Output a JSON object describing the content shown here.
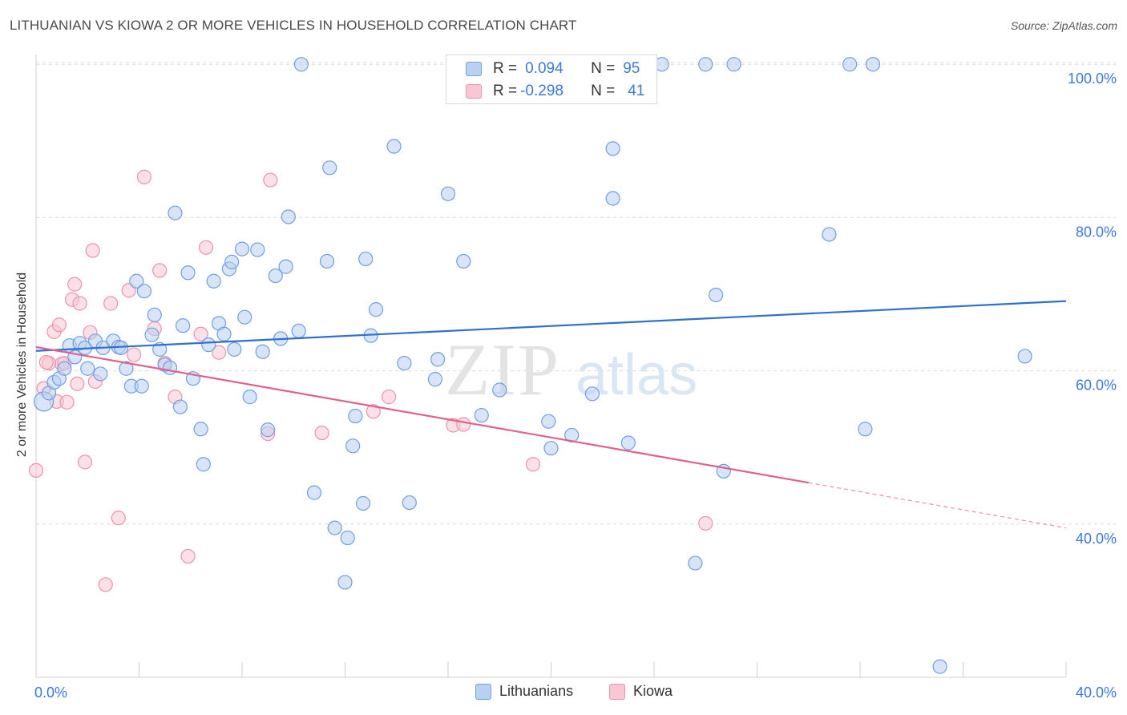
{
  "title": "LITHUANIAN VS KIOWA 2 OR MORE VEHICLES IN HOUSEHOLD CORRELATION CHART",
  "source": "Source: ZipAtlas.com",
  "watermark": {
    "zip": "ZIP",
    "atlas": "atlas"
  },
  "legend": {
    "rows": [
      {
        "r_label": "R =",
        "r_value": "0.094",
        "n_label": "N =",
        "n_value": "95"
      },
      {
        "r_label": "R =",
        "r_value": "-0.298",
        "n_label": "N =",
        "n_value": "41"
      }
    ]
  },
  "bottom_legend": {
    "lithuanians": "Lithuanians",
    "kiowa": "Kiowa"
  },
  "colors": {
    "blue_fill": "#b8d0f2",
    "blue_stroke": "#6f9fe0",
    "blue_line": "#2f6fcf",
    "pink_fill": "#f8c6d4",
    "pink_stroke": "#ee92ad",
    "pink_line": "#e0608e",
    "tick_label": "#3b78d8",
    "grid": "#dcdcdc"
  },
  "chart_data": {
    "type": "scatter",
    "title": "LITHUANIAN VS KIOWA 2 OR MORE VEHICLES IN HOUSEHOLD CORRELATION CHART",
    "xlabel": "",
    "ylabel": "2 or more Vehicles in Household",
    "xlim": [
      0,
      40
    ],
    "ylim": [
      20,
      104
    ],
    "x_tick_labels": [
      "0.0%",
      "40.0%"
    ],
    "y_ticks": [
      40,
      60,
      80,
      100
    ],
    "y_tick_labels": [
      "40.0%",
      "60.0%",
      "80.0%",
      "100.0%"
    ],
    "grid": true,
    "legend_position": "top-center",
    "series": [
      {
        "name": "Lithuanians",
        "color": "#b8d0f2",
        "trend": {
          "x": [
            0,
            40
          ],
          "y": [
            62.6,
            69.1
          ]
        },
        "points": [
          [
            0.3,
            56.0
          ],
          [
            0.5,
            57.1
          ],
          [
            0.7,
            58.5
          ],
          [
            0.9,
            59.0
          ],
          [
            1.1,
            60.3
          ],
          [
            1.3,
            63.3
          ],
          [
            1.5,
            61.8
          ],
          [
            1.7,
            63.6
          ],
          [
            1.9,
            63.0
          ],
          [
            2.0,
            60.3
          ],
          [
            2.3,
            63.9
          ],
          [
            2.5,
            59.6
          ],
          [
            2.6,
            63.0
          ],
          [
            3.0,
            63.9
          ],
          [
            3.2,
            63.1
          ],
          [
            3.3,
            63.0
          ],
          [
            3.5,
            60.3
          ],
          [
            3.7,
            58.0
          ],
          [
            3.9,
            71.7
          ],
          [
            4.1,
            58.0
          ],
          [
            4.2,
            70.4
          ],
          [
            4.5,
            64.7
          ],
          [
            4.6,
            67.3
          ],
          [
            4.8,
            62.8
          ],
          [
            5.0,
            60.8
          ],
          [
            5.2,
            60.4
          ],
          [
            5.4,
            80.6
          ],
          [
            5.6,
            55.3
          ],
          [
            5.7,
            65.9
          ],
          [
            5.9,
            72.8
          ],
          [
            6.1,
            59.0
          ],
          [
            6.4,
            52.4
          ],
          [
            6.5,
            47.8
          ],
          [
            6.7,
            63.4
          ],
          [
            6.9,
            71.7
          ],
          [
            7.1,
            66.2
          ],
          [
            7.3,
            64.8
          ],
          [
            7.5,
            73.3
          ],
          [
            7.7,
            62.8
          ],
          [
            8.0,
            75.9
          ],
          [
            8.1,
            67.0
          ],
          [
            8.3,
            56.6
          ],
          [
            8.6,
            75.8
          ],
          [
            8.8,
            62.5
          ],
          [
            9.0,
            52.3
          ],
          [
            9.3,
            72.4
          ],
          [
            9.5,
            64.2
          ],
          [
            9.7,
            73.6
          ],
          [
            9.8,
            80.1
          ],
          [
            10.2,
            65.2
          ],
          [
            10.3,
            100.0
          ],
          [
            10.8,
            44.1
          ],
          [
            11.3,
            74.3
          ],
          [
            11.4,
            86.5
          ],
          [
            11.6,
            39.5
          ],
          [
            12.0,
            32.4
          ],
          [
            12.1,
            38.2
          ],
          [
            12.3,
            50.2
          ],
          [
            12.4,
            54.1
          ],
          [
            12.7,
            42.7
          ],
          [
            12.8,
            74.6
          ],
          [
            13.0,
            64.6
          ],
          [
            13.2,
            68.0
          ],
          [
            13.9,
            89.3
          ],
          [
            14.3,
            61.0
          ],
          [
            14.5,
            42.8
          ],
          [
            15.5,
            58.9
          ],
          [
            15.6,
            61.5
          ],
          [
            16.0,
            83.1
          ],
          [
            16.6,
            74.3
          ],
          [
            17.3,
            54.2
          ],
          [
            18.0,
            57.5
          ],
          [
            19.0,
            100.0
          ],
          [
            19.9,
            53.4
          ],
          [
            20.0,
            49.9
          ],
          [
            20.8,
            51.6
          ],
          [
            21.6,
            57.0
          ],
          [
            22.4,
            89.0
          ],
          [
            22.4,
            82.5
          ],
          [
            23.0,
            50.6
          ],
          [
            24.3,
            100.0
          ],
          [
            25.6,
            34.9
          ],
          [
            26.4,
            69.9
          ],
          [
            26.7,
            46.9
          ],
          [
            27.1,
            100.0
          ],
          [
            30.8,
            77.8
          ],
          [
            31.6,
            100.0
          ],
          [
            32.2,
            52.4
          ],
          [
            35.1,
            21.4
          ],
          [
            38.4,
            61.9
          ],
          [
            17.2,
            100.0
          ],
          [
            22.0,
            100.0
          ],
          [
            26.0,
            100.0
          ],
          [
            32.5,
            100.0
          ],
          [
            7.6,
            74.2
          ]
        ]
      },
      {
        "name": "Kiowa",
        "color": "#f8c6d4",
        "trend": {
          "x": [
            0,
            30
          ],
          "y": [
            63.1,
            45.4
          ],
          "dashed_to": {
            "x": 40,
            "y": 39.5
          }
        },
        "points": [
          [
            0.0,
            47.0
          ],
          [
            0.3,
            57.7
          ],
          [
            0.5,
            61.0
          ],
          [
            0.7,
            65.1
          ],
          [
            0.8,
            56.0
          ],
          [
            0.9,
            66.0
          ],
          [
            1.0,
            60.9
          ],
          [
            1.2,
            55.9
          ],
          [
            1.5,
            71.3
          ],
          [
            1.4,
            69.3
          ],
          [
            1.6,
            58.3
          ],
          [
            1.7,
            68.8
          ],
          [
            1.9,
            48.1
          ],
          [
            2.1,
            65.0
          ],
          [
            2.2,
            75.7
          ],
          [
            2.3,
            58.6
          ],
          [
            2.7,
            32.1
          ],
          [
            2.9,
            68.8
          ],
          [
            3.2,
            40.8
          ],
          [
            3.6,
            70.5
          ],
          [
            3.8,
            62.1
          ],
          [
            4.2,
            85.3
          ],
          [
            4.6,
            65.5
          ],
          [
            4.8,
            73.1
          ],
          [
            5.0,
            61.0
          ],
          [
            5.4,
            56.6
          ],
          [
            5.9,
            35.8
          ],
          [
            6.4,
            64.8
          ],
          [
            6.6,
            76.1
          ],
          [
            7.1,
            62.4
          ],
          [
            9.1,
            84.9
          ],
          [
            9.0,
            51.8
          ],
          [
            11.1,
            51.9
          ],
          [
            13.1,
            54.7
          ],
          [
            13.7,
            56.6
          ],
          [
            16.2,
            52.9
          ],
          [
            16.6,
            53.0
          ],
          [
            19.3,
            47.8
          ],
          [
            26.0,
            40.1
          ],
          [
            0.4,
            61.1
          ],
          [
            1.1,
            61.0
          ]
        ]
      }
    ]
  }
}
